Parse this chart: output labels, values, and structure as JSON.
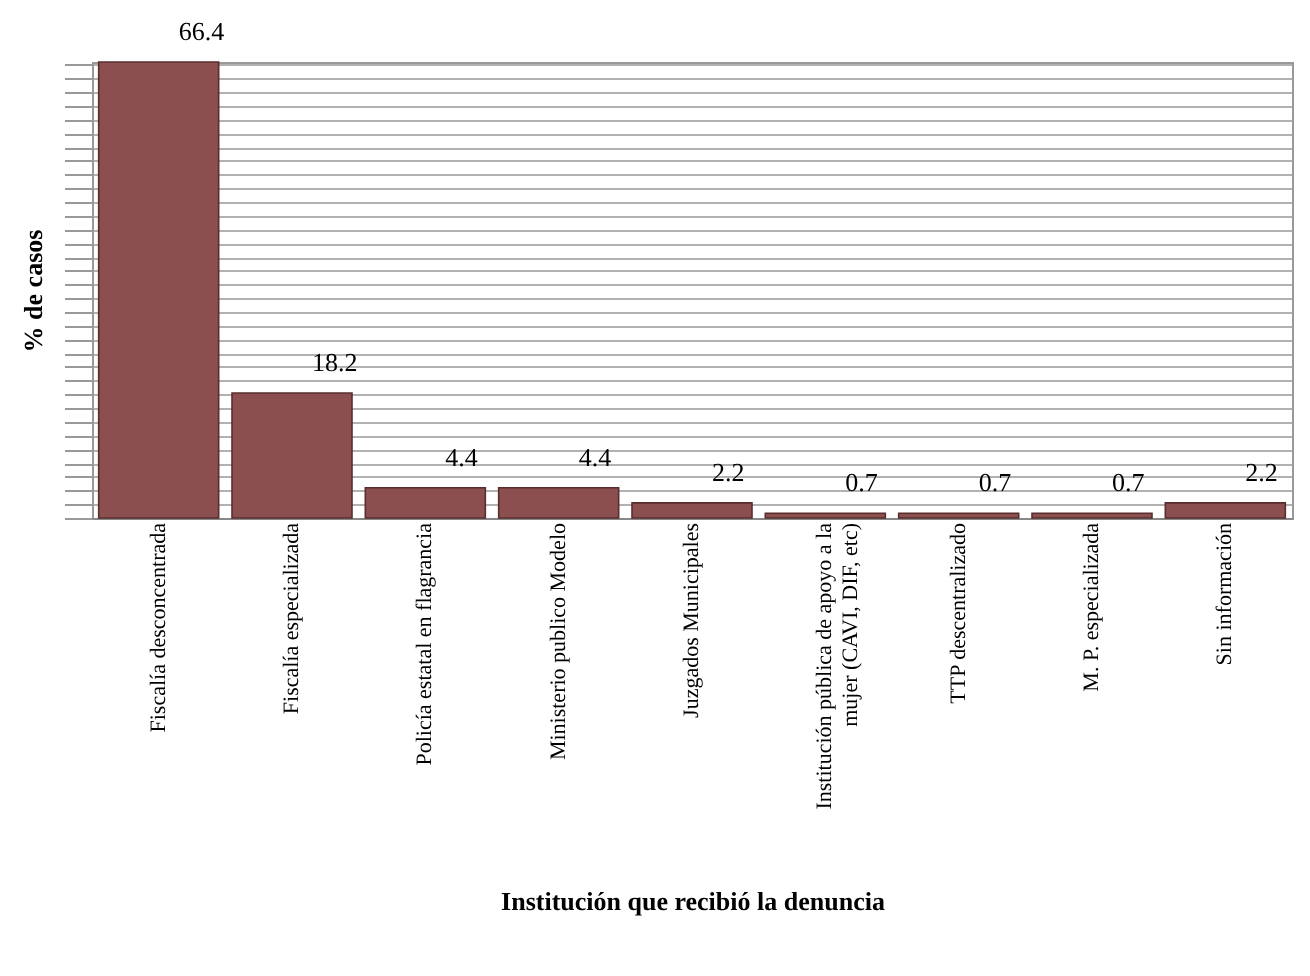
{
  "chart_data": {
    "type": "bar",
    "categories": [
      "Fiscalía desconcentrada",
      "Fiscalía especializada",
      "Policía estatal en flagrancia",
      "Ministerio publico Modelo",
      "Juzgados Municipales",
      "Institución pública de apoyo a la\nmujer (CAVI, DIF, etc)",
      "TTP descentralizado",
      "M. P. especializada",
      "Sin información"
    ],
    "values": [
      66.4,
      18.2,
      4.4,
      4.4,
      2.2,
      0.7,
      0.7,
      0.7,
      2.2
    ],
    "color": "#8c4f4f",
    "data_labels": true,
    "xlabel": "Institución que recibió la denuncia",
    "ylabel": "% de casos",
    "tick_labels": "x",
    "grid": "y"
  }
}
